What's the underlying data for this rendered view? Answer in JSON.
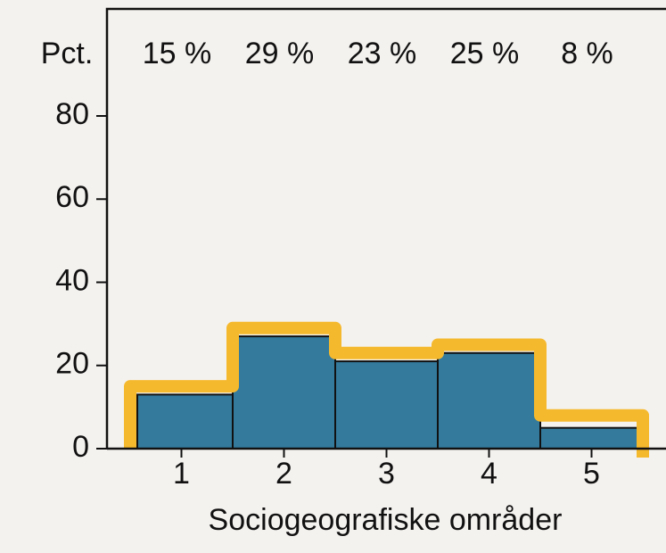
{
  "chart_data": {
    "type": "bar",
    "y_label": "Pct.",
    "x_label": "Sociogeografiske områder",
    "categories": [
      "1",
      "2",
      "3",
      "4",
      "5"
    ],
    "series": [
      {
        "color": "#337a9c",
        "values": [
          13,
          27,
          21,
          23,
          5
        ]
      },
      {
        "color": "#f5b92e",
        "values": [
          15,
          29,
          23,
          25,
          8
        ],
        "value_labels": [
          "15 %",
          "29 %",
          "23 %",
          "25 %",
          "8 %"
        ]
      }
    ],
    "ylim": [
      0,
      80
    ],
    "yticks": [
      0,
      20,
      40,
      60,
      80
    ]
  }
}
